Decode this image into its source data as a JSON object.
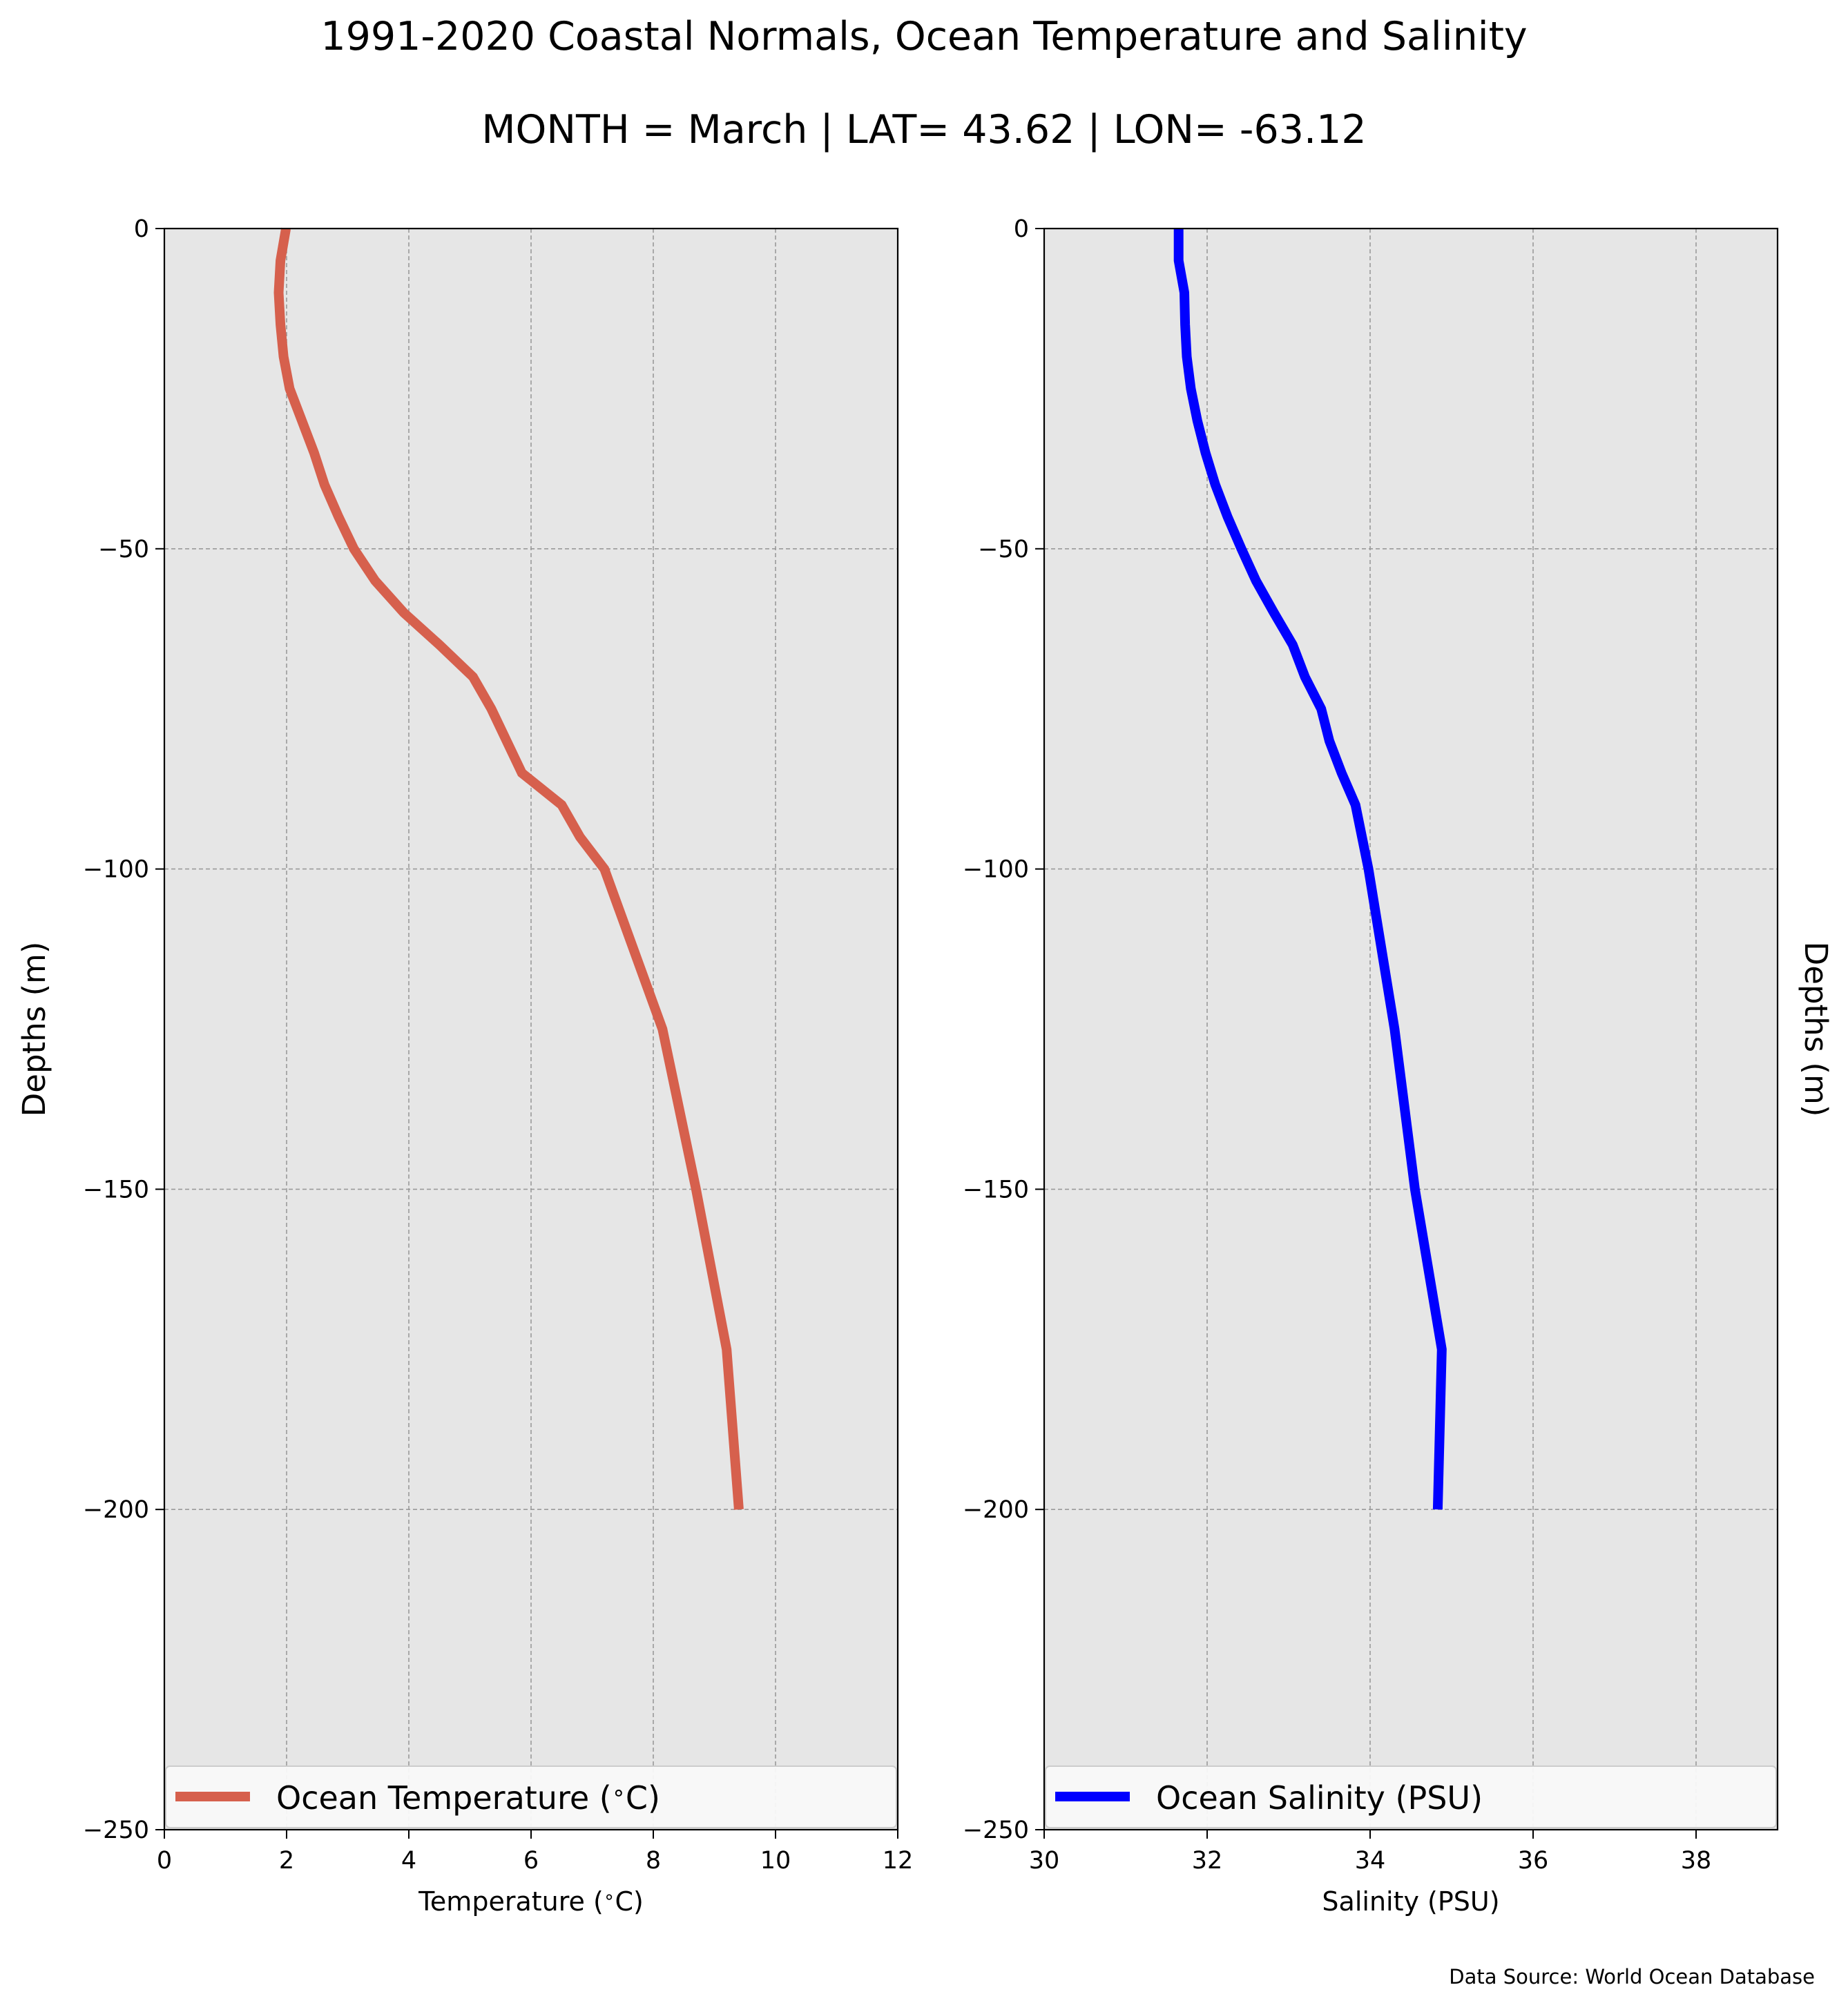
{
  "figure": {
    "title": "1991-2020 Coastal Normals, Ocean Temperature and Salinity",
    "subtitle": "MONTH = March | LAT= 43.62 | LON= -63.12",
    "source": "Data Source: World Ocean Database"
  },
  "chart_data": [
    {
      "type": "line",
      "xlabel": "Temperature ($^\\circ$C)",
      "ylabel": "Depths (m)",
      "xlim": [
        0,
        12
      ],
      "ylim": [
        -250,
        0
      ],
      "xticks": [
        0,
        2,
        4,
        6,
        8,
        10,
        12
      ],
      "xtick_labels": [
        "0",
        "2",
        "4",
        "6",
        "8",
        "10",
        "12"
      ],
      "yticks": [
        0,
        -50,
        -100,
        -150,
        -200,
        -250
      ],
      "ytick_labels": [
        "0",
        "−50",
        "−100",
        "−150",
        "−200",
        "−250"
      ],
      "grid": true,
      "legend": "lower-center",
      "series": [
        {
          "name": "Ocean Temperature ($^\\circ$C)",
          "color": "#d6604d",
          "x": [
            1.99,
            1.9,
            1.87,
            1.9,
            1.95,
            2.05,
            2.25,
            2.45,
            2.62,
            2.85,
            3.1,
            3.45,
            3.92,
            4.5,
            5.05,
            5.35,
            5.85,
            6.5,
            6.8,
            7.2,
            8.15,
            8.7,
            9.2,
            9.4
          ],
          "y": [
            0,
            -5,
            -10,
            -15,
            -20,
            -25,
            -30,
            -35,
            -40,
            -45,
            -50,
            -55,
            -60,
            -65,
            -70,
            -75,
            -85,
            -90,
            -95,
            -100,
            -125,
            -150,
            -175,
            -200
          ]
        }
      ]
    },
    {
      "type": "line",
      "xlabel": "Salinity (PSU)",
      "ylabel": "Depths (m)",
      "xlim": [
        30,
        39
      ],
      "ylim": [
        -250,
        0
      ],
      "xticks": [
        30,
        32,
        34,
        36,
        38
      ],
      "xtick_labels": [
        "30",
        "32",
        "34",
        "36",
        "38"
      ],
      "yticks": [
        0,
        -50,
        -100,
        -150,
        -200,
        -250
      ],
      "ytick_labels": [
        "0",
        "−50",
        "−100",
        "−150",
        "−200",
        "−250"
      ],
      "grid": true,
      "legend": "lower-center",
      "series": [
        {
          "name": "Ocean Salinity (PSU)",
          "color": "#0000ff",
          "x": [
            31.65,
            31.65,
            31.72,
            31.73,
            31.75,
            31.8,
            31.88,
            31.98,
            32.1,
            32.25,
            32.42,
            32.6,
            32.82,
            33.05,
            33.2,
            33.4,
            33.5,
            33.65,
            33.82,
            33.98,
            34.3,
            34.55,
            34.88,
            34.83
          ],
          "y": [
            0,
            -5,
            -10,
            -15,
            -20,
            -25,
            -30,
            -35,
            -40,
            -45,
            -50,
            -55,
            -60,
            -65,
            -70,
            -75,
            -80,
            -85,
            -90,
            -100,
            -125,
            -150,
            -175,
            -200
          ]
        }
      ]
    }
  ]
}
